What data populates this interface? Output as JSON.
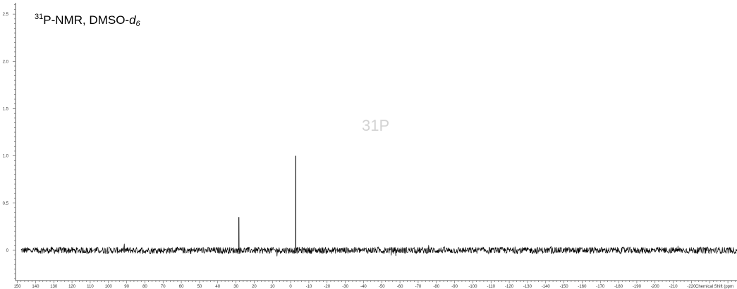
{
  "chart_data": {
    "type": "line",
    "title": {
      "isotope_sup": "31",
      "main": "P-NMR, DMSO-",
      "solvent_letter": "d",
      "solvent_sub": "6"
    },
    "watermark": "31P",
    "xlabel": "Chemical Shift (ppm",
    "ylabel": "",
    "xlim": [
      151,
      -245
    ],
    "ylim": [
      -0.32,
      2.62
    ],
    "x_reversed": true,
    "x_ticks": [
      150,
      140,
      130,
      120,
      110,
      100,
      90,
      80,
      70,
      60,
      50,
      40,
      30,
      20,
      10,
      0,
      -10,
      -20,
      -30,
      -40,
      -50,
      -60,
      -70,
      -80,
      -90,
      -100,
      -110,
      -120,
      -130,
      -140,
      -150,
      -160,
      -170,
      -180,
      -190,
      -200,
      -210,
      -220
    ],
    "y_ticks": [
      0,
      0.5,
      1.0,
      1.5,
      2.0,
      2.5
    ],
    "y_tick_labels": [
      "0",
      "0.5",
      "1.0",
      "1.5",
      "2.0",
      "2.5"
    ],
    "grid": false,
    "series": [
      {
        "baseline_range_ppm": [
          148,
          -248
        ],
        "noise_amplitude": 0.035,
        "peaks": [
          {
            "x": 28.4,
            "y": 0.35
          },
          {
            "x": -2.8,
            "y": 1.0
          }
        ]
      }
    ],
    "colors": {
      "line": "#000000",
      "axis": "#555555",
      "watermark": "#d3d3d3"
    }
  }
}
